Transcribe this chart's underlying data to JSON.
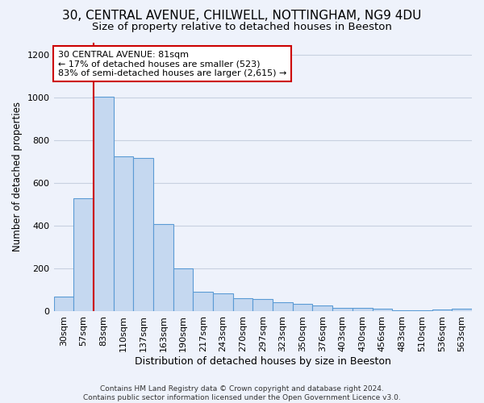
{
  "title_line1": "30, CENTRAL AVENUE, CHILWELL, NOTTINGHAM, NG9 4DU",
  "title_line2": "Size of property relative to detached houses in Beeston",
  "xlabel": "Distribution of detached houses by size in Beeston",
  "ylabel": "Number of detached properties",
  "categories": [
    "30sqm",
    "57sqm",
    "83sqm",
    "110sqm",
    "137sqm",
    "163sqm",
    "190sqm",
    "217sqm",
    "243sqm",
    "270sqm",
    "297sqm",
    "323sqm",
    "350sqm",
    "376sqm",
    "403sqm",
    "430sqm",
    "456sqm",
    "483sqm",
    "510sqm",
    "536sqm",
    "563sqm"
  ],
  "values": [
    70,
    530,
    1005,
    725,
    720,
    410,
    200,
    92,
    85,
    62,
    60,
    45,
    35,
    30,
    18,
    18,
    14,
    5,
    5,
    10,
    12
  ],
  "bar_color": "#c5d8f0",
  "bar_edge_color": "#5b9bd5",
  "red_line_index": 2,
  "red_line_color": "#cc0000",
  "annotation_line1": "30 CENTRAL AVENUE: 81sqm",
  "annotation_line2": "← 17% of detached houses are smaller (523)",
  "annotation_line3": "83% of semi-detached houses are larger (2,615) →",
  "ylim": [
    0,
    1260
  ],
  "yticks": [
    0,
    200,
    400,
    600,
    800,
    1000,
    1200
  ],
  "title1_fontsize": 11,
  "title2_fontsize": 9.5,
  "xlabel_fontsize": 9,
  "ylabel_fontsize": 8.5,
  "tick_fontsize": 8,
  "annot_fontsize": 8,
  "footer_text": "Contains HM Land Registry data © Crown copyright and database right 2024.\nContains public sector information licensed under the Open Government Licence v3.0.",
  "background_color": "#eef2fb",
  "plot_bg_color": "#eef2fb",
  "grid_color": "#c8d0e0",
  "footer_fontsize": 6.5
}
